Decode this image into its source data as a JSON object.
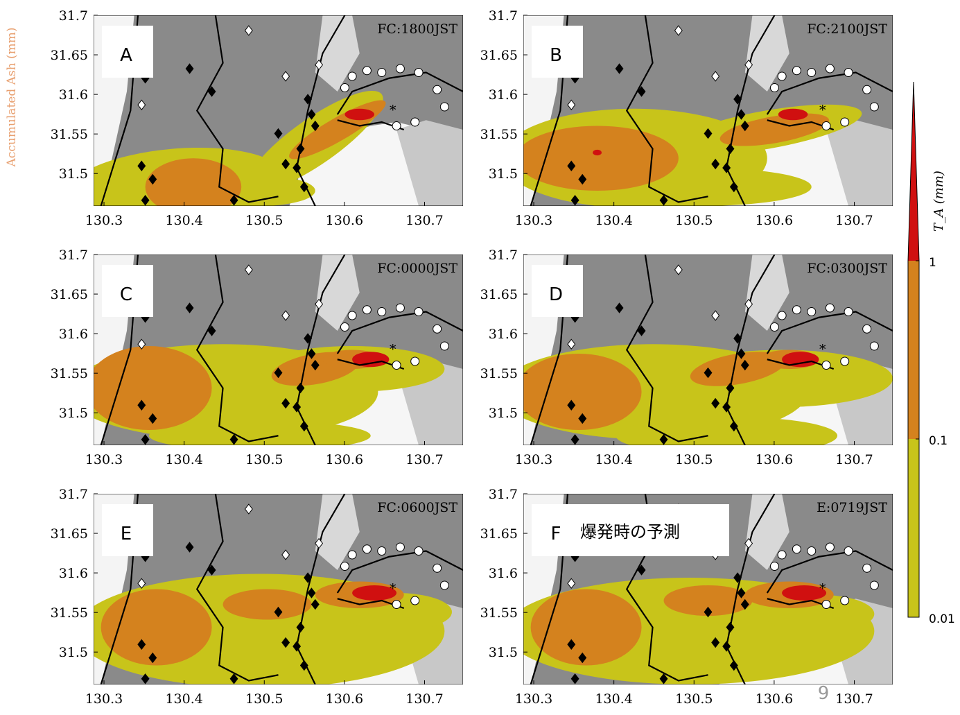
{
  "side_label": "Accumulated Ash (mm)",
  "xlim": [
    130.287,
    130.748
  ],
  "xticks": [
    130.3,
    130.4,
    130.5,
    130.6,
    130.7
  ],
  "ylim": [
    31.459,
    31.7
  ],
  "yticks": [
    31.5,
    31.55,
    31.6,
    31.65,
    31.7
  ],
  "panels": [
    {
      "label": "A",
      "forecast": "FC:1800JST"
    },
    {
      "label": "B",
      "forecast": "FC:2100JST"
    },
    {
      "label": "C",
      "forecast": "FC:0000JST"
    },
    {
      "label": "D",
      "forecast": "FC:0300JST"
    },
    {
      "label": "E",
      "forecast": "FC:0600JST"
    },
    {
      "label": "F",
      "forecast": "E:0719JST",
      "note": "爆発時の予測"
    }
  ],
  "colorbar": {
    "label": "T_A (mm)",
    "ticks": [
      0.01,
      0.1,
      1
    ],
    "colors": [
      "#c8c41a",
      "#d4821e",
      "#d01010"
    ]
  },
  "page_number": "9"
}
